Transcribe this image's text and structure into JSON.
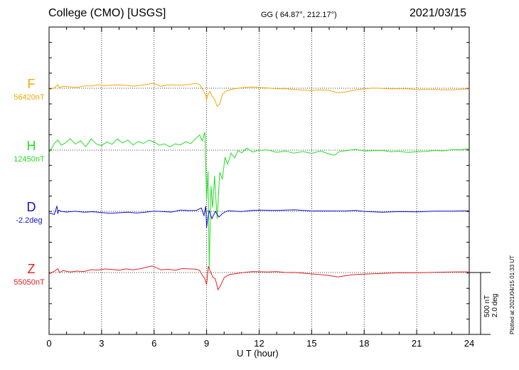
{
  "header": {
    "station": "College (CMO)  [USGS]",
    "coords": "GG ( 64.87°, 212.17°)",
    "date": "2021/03/15"
  },
  "footer": {
    "plotted": "Plotted at 2021/04/15 01:33 UT"
  },
  "scale": {
    "nt": "500 nT",
    "deg": "2.0 deg"
  },
  "chart_data": {
    "type": "line",
    "xlabel": "U T (hour)",
    "xlim": [
      0,
      24
    ],
    "xticks": [
      0,
      3,
      6,
      9,
      12,
      15,
      18,
      21,
      24
    ],
    "grid": true,
    "series": [
      {
        "name": "F",
        "baseline": "56420nT",
        "color": "#f5a800",
        "x": [
          0,
          0.3,
          0.5,
          0.6,
          0.8,
          1.2,
          1.6,
          2.0,
          2.4,
          2.8,
          3.2,
          3.6,
          4.0,
          4.4,
          4.8,
          5.2,
          5.6,
          5.9,
          6.1,
          6.4,
          6.8,
          7.2,
          7.6,
          8.0,
          8.4,
          8.6,
          8.75,
          8.85,
          8.95,
          9.0,
          9.1,
          9.2,
          9.3,
          9.45,
          9.6,
          9.75,
          9.9,
          10.1,
          10.4,
          10.8,
          11.2,
          11.6,
          12.0,
          12.5,
          13.0,
          13.5,
          14.0,
          14.5,
          15.0,
          15.5,
          16.0,
          16.5,
          17.0,
          17.5,
          18.0,
          18.5,
          19.0,
          19.5,
          20.0,
          20.5,
          21.0,
          21.5,
          22.0,
          22.5,
          23.0,
          23.5,
          24.0
        ],
        "y": [
          -20,
          10,
          60,
          20,
          40,
          30,
          20,
          35,
          30,
          40,
          25,
          30,
          35,
          30,
          25,
          40,
          60,
          80,
          70,
          40,
          60,
          50,
          45,
          50,
          60,
          40,
          -20,
          -60,
          -110,
          -160,
          -70,
          -40,
          -100,
          -140,
          -240,
          -210,
          -80,
          -40,
          -20,
          -10,
          0,
          5,
          0,
          -5,
          -10,
          -5,
          -10,
          -15,
          -20,
          -10,
          -20,
          -60,
          -50,
          -30,
          -20,
          -10,
          -15,
          -20,
          -15,
          -10,
          -15,
          -10,
          -5,
          -10,
          -10,
          -5,
          -5
        ]
      },
      {
        "name": "H",
        "baseline": "12450nT",
        "color": "#22dd22",
        "x": [
          0,
          0.3,
          0.5,
          0.7,
          0.9,
          1.2,
          1.5,
          1.8,
          2.1,
          2.4,
          2.7,
          3.0,
          3.3,
          3.6,
          3.9,
          4.2,
          4.5,
          4.8,
          5.1,
          5.4,
          5.7,
          6.0,
          6.3,
          6.6,
          6.9,
          7.2,
          7.5,
          7.8,
          8.1,
          8.4,
          8.6,
          8.75,
          8.9,
          9.0,
          9.08,
          9.15,
          9.25,
          9.35,
          9.45,
          9.6,
          9.75,
          9.9,
          10.05,
          10.2,
          10.4,
          10.6,
          10.8,
          11.0,
          11.3,
          11.6,
          12.0,
          12.5,
          13.0,
          13.5,
          14.0,
          14.5,
          15.0,
          15.5,
          16.0,
          16.3,
          16.6,
          17.0,
          17.5,
          18.0,
          18.5,
          19.0,
          19.5,
          20.0,
          20.5,
          21.0,
          21.5,
          22.0,
          22.5,
          23.0,
          23.5,
          24.0
        ],
        "y": [
          -50,
          80,
          130,
          60,
          90,
          160,
          90,
          140,
          60,
          170,
          100,
          70,
          120,
          80,
          150,
          90,
          130,
          60,
          110,
          90,
          140,
          120,
          80,
          100,
          60,
          100,
          80,
          120,
          90,
          160,
          200,
          120,
          240,
          -700,
          -300,
          -1650,
          -500,
          -800,
          -350,
          -950,
          -300,
          -400,
          -100,
          -200,
          -50,
          -120,
          -20,
          -50,
          20,
          -30,
          0,
          10,
          -20,
          0,
          -30,
          -10,
          -40,
          -10,
          -60,
          -80,
          -30,
          -20,
          0,
          -20,
          -10,
          0,
          -15,
          -5,
          -20,
          -10,
          -10,
          0,
          -10,
          0,
          -5,
          10
        ]
      },
      {
        "name": "D",
        "baseline": "-2.2deg",
        "color": "#1010cc",
        "x": [
          0,
          0.3,
          0.45,
          0.5,
          0.55,
          0.7,
          1.0,
          1.5,
          2.0,
          2.5,
          3.0,
          3.5,
          4.0,
          4.5,
          5.0,
          5.5,
          6.0,
          6.5,
          7.0,
          7.5,
          8.0,
          8.4,
          8.7,
          8.85,
          8.95,
          9.0,
          9.05,
          9.15,
          9.3,
          9.5,
          9.7,
          9.9,
          10.2,
          10.6,
          11.0,
          11.5,
          12.0,
          13.0,
          14.0,
          15.0,
          16.0,
          17.0,
          17.5,
          18.0,
          19.0,
          20.0,
          21.0,
          22.0,
          23.0,
          24.0
        ],
        "y": [
          -0.05,
          -0.15,
          0.35,
          -0.15,
          0.05,
          -0.05,
          -0.1,
          -0.05,
          -0.1,
          -0.05,
          -0.08,
          -0.1,
          -0.05,
          0.0,
          -0.05,
          0.0,
          0.05,
          0.0,
          -0.05,
          0.05,
          0.0,
          0.0,
          0.15,
          -0.3,
          0.3,
          -1.0,
          -0.5,
          0.1,
          -0.4,
          0.05,
          -0.3,
          -0.1,
          0.05,
          0.0,
          -0.05,
          0.0,
          0.02,
          0.0,
          0.05,
          0.0,
          0.02,
          0.05,
          0.1,
          0.05,
          0.0,
          0.03,
          0.0,
          0.02,
          0.0,
          0.0
        ]
      },
      {
        "name": "Z",
        "baseline": "55050nT",
        "color": "#dd2222",
        "x": [
          0,
          0.3,
          0.5,
          0.6,
          0.8,
          1.2,
          1.6,
          2.0,
          2.4,
          2.8,
          3.2,
          3.6,
          4.0,
          4.4,
          4.8,
          5.2,
          5.6,
          5.9,
          6.1,
          6.4,
          6.8,
          7.2,
          7.6,
          8.0,
          8.4,
          8.6,
          8.75,
          8.9,
          9.0,
          9.1,
          9.2,
          9.35,
          9.5,
          9.65,
          9.8,
          10.0,
          10.3,
          10.7,
          11.2,
          11.6,
          12.0,
          12.5,
          13.0,
          13.5,
          14.0,
          14.5,
          15.0,
          15.5,
          16.0,
          16.5,
          17.0,
          17.5,
          18.0,
          19.0,
          20.0,
          21.0,
          22.0,
          23.0,
          24.0
        ],
        "y": [
          -20,
          20,
          60,
          10,
          40,
          20,
          30,
          20,
          40,
          30,
          40,
          30,
          20,
          40,
          30,
          50,
          80,
          100,
          80,
          50,
          60,
          40,
          60,
          50,
          40,
          20,
          -50,
          -100,
          -180,
          80,
          20,
          -60,
          -80,
          -230,
          -170,
          -60,
          -20,
          -10,
          0,
          5,
          0,
          -5,
          0,
          -10,
          -5,
          -10,
          -15,
          -20,
          -30,
          -50,
          -30,
          -20,
          -20,
          -15,
          -10,
          -15,
          -10,
          -5,
          0
        ]
      }
    ]
  }
}
